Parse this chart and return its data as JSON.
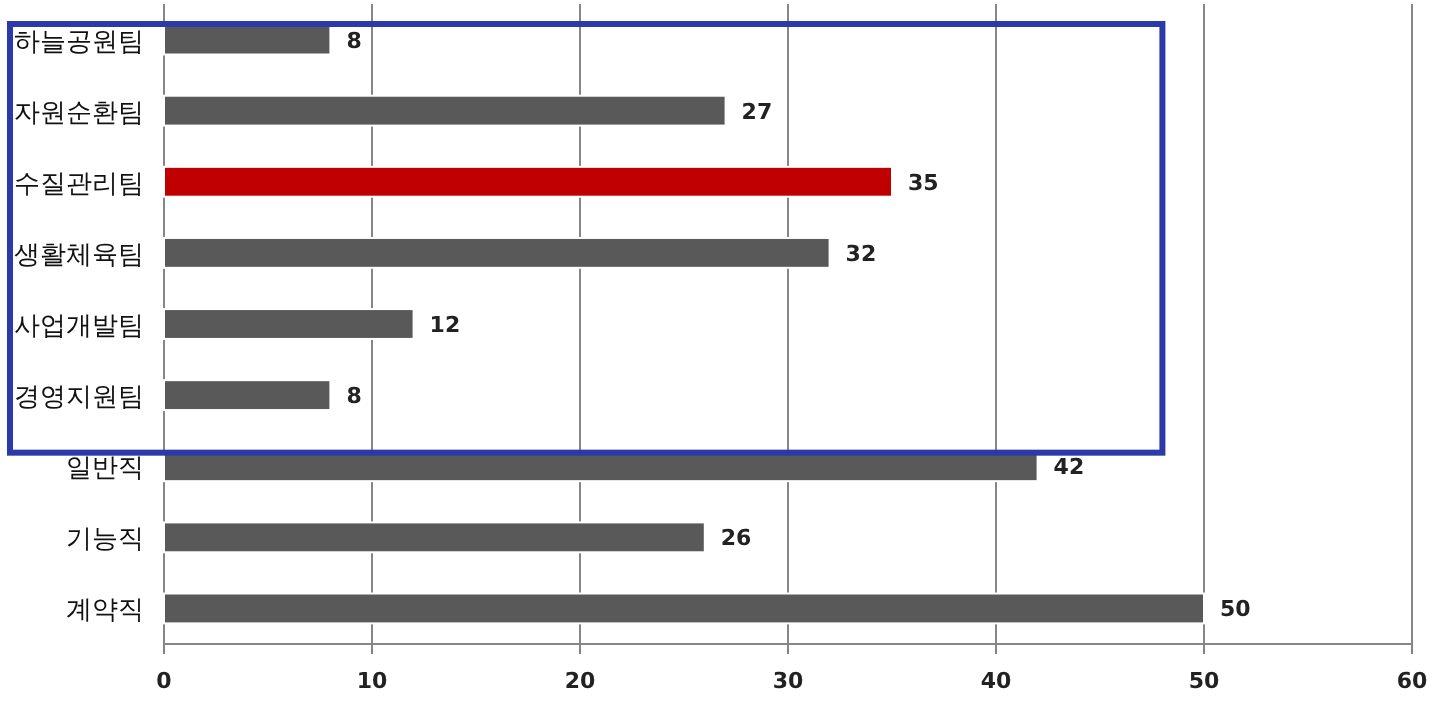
{
  "chart_data": {
    "type": "bar",
    "orientation": "horizontal",
    "categories": [
      "하늘공원팀",
      "자원순환팀",
      "수질관리팀",
      "생활체육팀",
      "사업개발팀",
      "경영지원팀",
      "일반직",
      "기능직",
      "계약직"
    ],
    "values": [
      8,
      27,
      35,
      32,
      12,
      8,
      42,
      26,
      50
    ],
    "colors": [
      "#595959",
      "#595959",
      "#c00000",
      "#595959",
      "#595959",
      "#595959",
      "#595959",
      "#595959",
      "#595959"
    ],
    "xlim": [
      0,
      60
    ],
    "xticks": [
      0,
      10,
      20,
      30,
      40,
      50,
      60
    ],
    "grid": "x",
    "data_labels": true
  }
}
